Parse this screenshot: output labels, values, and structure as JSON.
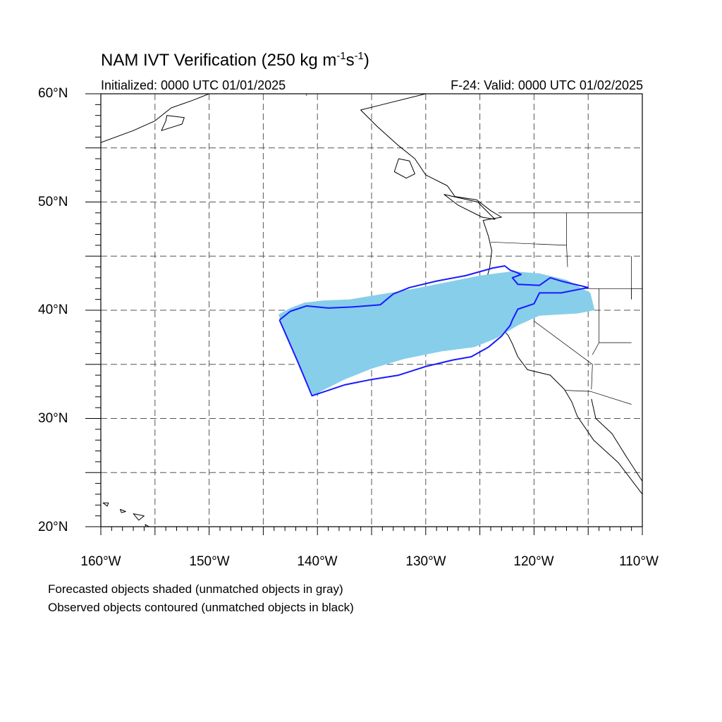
{
  "title": {
    "prefix": "NAM IVT Verification (250 kg m",
    "exp1": "-1",
    "mid": "s",
    "exp2": "-1",
    "suffix": ")"
  },
  "initialized": "Initialized: 0000 UTC 01/01/2025",
  "valid": "F-24: Valid: 0000 UTC 01/02/2025",
  "lat_labels": [
    "60°N",
    "50°N",
    "40°N",
    "30°N",
    "20°N"
  ],
  "lon_labels": [
    "160°W",
    "150°W",
    "140°W",
    "130°W",
    "120°W",
    "110°W"
  ],
  "captions": [
    "Forecasted objects shaded (unmatched objects in gray)",
    "Observed objects contoured (unmatched objects in black)"
  ],
  "map": {
    "extent": {
      "lon_min": -160,
      "lon_max": -110,
      "lat_min": 20,
      "lat_max": 60
    },
    "gridline_interval_deg": 5,
    "label_interval_deg": 10,
    "colors": {
      "forecast_shade": "#87ceeb",
      "observed_contour": "#1a1aff",
      "coastline": "#000000",
      "grid": "#555555"
    },
    "forecast_object": [
      [
        -143.6,
        39.6
      ],
      [
        -142.5,
        40.2
      ],
      [
        -141.2,
        40.7
      ],
      [
        -139.5,
        40.9
      ],
      [
        -137.0,
        41.0
      ],
      [
        -134.0,
        41.5
      ],
      [
        -131.0,
        42.0
      ],
      [
        -128.0,
        42.6
      ],
      [
        -125.0,
        43.2
      ],
      [
        -122.0,
        43.6
      ],
      [
        -119.5,
        43.4
      ],
      [
        -117.0,
        42.8
      ],
      [
        -114.8,
        41.6
      ],
      [
        -114.4,
        40.0
      ],
      [
        -116.0,
        39.7
      ],
      [
        -119.5,
        39.5
      ],
      [
        -121.5,
        38.6
      ],
      [
        -123.5,
        37.4
      ],
      [
        -125.5,
        36.6
      ],
      [
        -128.5,
        36.2
      ],
      [
        -132.0,
        35.5
      ],
      [
        -135.0,
        34.6
      ],
      [
        -137.5,
        33.6
      ],
      [
        -139.5,
        32.6
      ],
      [
        -140.4,
        32.1
      ],
      [
        -141.5,
        34.5
      ],
      [
        -142.6,
        37.0
      ]
    ],
    "observed_object": [
      [
        -143.5,
        39.1
      ],
      [
        -142.5,
        39.9
      ],
      [
        -141.0,
        40.4
      ],
      [
        -139.0,
        40.2
      ],
      [
        -136.8,
        40.3
      ],
      [
        -134.2,
        40.5
      ],
      [
        -133.0,
        41.5
      ],
      [
        -131.5,
        42.1
      ],
      [
        -129.0,
        42.7
      ],
      [
        -126.3,
        43.2
      ],
      [
        -123.8,
        43.9
      ],
      [
        -122.7,
        44.1
      ],
      [
        -122.2,
        43.7
      ],
      [
        -121.6,
        43.5
      ],
      [
        -121.2,
        43.3
      ],
      [
        -122.0,
        43.0
      ],
      [
        -121.5,
        42.4
      ],
      [
        -119.5,
        42.3
      ],
      [
        -118.5,
        43.0
      ],
      [
        -117.5,
        42.7
      ],
      [
        -115.0,
        42.1
      ],
      [
        -117.5,
        41.6
      ],
      [
        -119.5,
        41.6
      ],
      [
        -120.0,
        40.6
      ],
      [
        -121.5,
        40.1
      ],
      [
        -122.0,
        39.1
      ],
      [
        -122.2,
        38.6
      ],
      [
        -123.0,
        37.6
      ],
      [
        -124.2,
        36.6
      ],
      [
        -125.8,
        35.7
      ],
      [
        -127.5,
        35.4
      ],
      [
        -130.0,
        34.8
      ],
      [
        -132.5,
        34.0
      ],
      [
        -135.0,
        33.6
      ],
      [
        -137.5,
        33.1
      ],
      [
        -140.5,
        32.1
      ],
      [
        -141.8,
        35.2
      ],
      [
        -143.5,
        39.1
      ]
    ],
    "coast_na": [
      [
        -111.0,
        60.0
      ],
      [
        -130.0,
        60.0
      ],
      [
        -134.0,
        59.0
      ],
      [
        -136.0,
        58.5
      ],
      [
        -134.5,
        57.0
      ],
      [
        -132.5,
        55.2
      ],
      [
        -131.0,
        54.0
      ],
      [
        -130.0,
        52.5
      ],
      [
        -128.0,
        51.5
      ],
      [
        -127.3,
        50.5
      ],
      [
        -125.3,
        50.2
      ],
      [
        -124.0,
        49.2
      ],
      [
        -123.0,
        48.6
      ],
      [
        -124.7,
        48.3
      ],
      [
        -124.2,
        46.8
      ],
      [
        -123.9,
        45.5
      ],
      [
        -124.1,
        43.9
      ],
      [
        -124.5,
        42.5
      ],
      [
        -124.2,
        41.0
      ],
      [
        -123.8,
        39.8
      ],
      [
        -123.0,
        38.3
      ],
      [
        -122.4,
        37.7
      ],
      [
        -122.0,
        36.9
      ],
      [
        -121.5,
        35.7
      ],
      [
        -120.6,
        34.5
      ],
      [
        -118.5,
        34.0
      ],
      [
        -117.2,
        32.7
      ],
      [
        -116.5,
        31.5
      ],
      [
        -116.0,
        30.2
      ],
      [
        -114.5,
        28.0
      ],
      [
        -112.2,
        25.9
      ],
      [
        -110.0,
        23.0
      ]
    ],
    "coast_alaska_peninsula": [
      [
        -160.0,
        55.5
      ],
      [
        -157.0,
        56.6
      ],
      [
        -155.0,
        57.5
      ],
      [
        -153.5,
        58.7
      ],
      [
        -151.5,
        59.4
      ],
      [
        -150.0,
        60.0
      ]
    ],
    "coast_gulf_california": [
      [
        -114.7,
        31.8
      ],
      [
        -114.3,
        30.0
      ],
      [
        -112.8,
        28.6
      ],
      [
        -111.5,
        26.5
      ],
      [
        -110.0,
        24.2
      ]
    ],
    "islands": [
      [
        [
          -132.5,
          54.0
        ],
        [
          -131.5,
          53.8
        ],
        [
          -131.0,
          52.6
        ],
        [
          -131.8,
          52.2
        ],
        [
          -132.9,
          52.8
        ],
        [
          -132.5,
          54.0
        ]
      ],
      [
        [
          -128.3,
          50.7
        ],
        [
          -125.2,
          50.0
        ],
        [
          -123.6,
          48.4
        ],
        [
          -124.8,
          48.6
        ],
        [
          -127.0,
          49.7
        ],
        [
          -128.3,
          50.7
        ]
      ],
      [
        [
          -153.9,
          58.0
        ],
        [
          -152.3,
          57.8
        ],
        [
          -152.5,
          57.2
        ],
        [
          -154.4,
          56.6
        ],
        [
          -154.0,
          57.5
        ],
        [
          -153.9,
          58.0
        ]
      ],
      [
        [
          -159.8,
          22.2
        ],
        [
          -159.3,
          22.2
        ],
        [
          -159.4,
          21.9
        ],
        [
          -159.8,
          22.2
        ]
      ],
      [
        [
          -158.2,
          21.6
        ],
        [
          -157.7,
          21.4
        ],
        [
          -158.1,
          21.3
        ],
        [
          -158.2,
          21.6
        ]
      ],
      [
        [
          -157.0,
          21.2
        ],
        [
          -156.0,
          21.0
        ],
        [
          -156.5,
          20.6
        ],
        [
          -157.0,
          21.2
        ]
      ],
      [
        [
          -155.9,
          20.2
        ],
        [
          -155.0,
          19.7
        ],
        [
          -155.6,
          19.1
        ],
        [
          -155.9,
          20.2
        ]
      ]
    ],
    "borders": [
      [
        [
          -123.3,
          49.0
        ],
        [
          -110.0,
          49.0
        ]
      ],
      [
        [
          -124.2,
          42.0
        ],
        [
          -110.0,
          42.0
        ]
      ],
      [
        [
          -120.0,
          42.0
        ],
        [
          -120.0,
          39.0
        ],
        [
          -114.6,
          35.0
        ],
        [
          -114.7,
          32.7
        ]
      ],
      [
        [
          -117.1,
          32.6
        ],
        [
          -114.8,
          32.5
        ],
        [
          -111.0,
          31.3
        ]
      ],
      [
        [
          -117.0,
          49.0
        ],
        [
          -117.0,
          46.0
        ],
        [
          -116.9,
          44.0
        ]
      ],
      [
        [
          -114.0,
          42.0
        ],
        [
          -114.0,
          37.0
        ]
      ],
      [
        [
          -114.0,
          37.0
        ],
        [
          -114.6,
          35.9
        ]
      ],
      [
        [
          -111.0,
          45.0
        ],
        [
          -111.0,
          41.0
        ]
      ],
      [
        [
          -111.0,
          41.0
        ],
        [
          -111.0,
          42.0
        ],
        [
          -110.0,
          42.0
        ]
      ],
      [
        [
          -111.0,
          37.0
        ],
        [
          -114.0,
          37.0
        ]
      ],
      [
        [
          -124.0,
          46.3
        ],
        [
          -117.0,
          46.0
        ]
      ],
      [
        [
          -141.0,
          60.0
        ],
        [
          -141.0,
          59.8
        ]
      ]
    ]
  }
}
